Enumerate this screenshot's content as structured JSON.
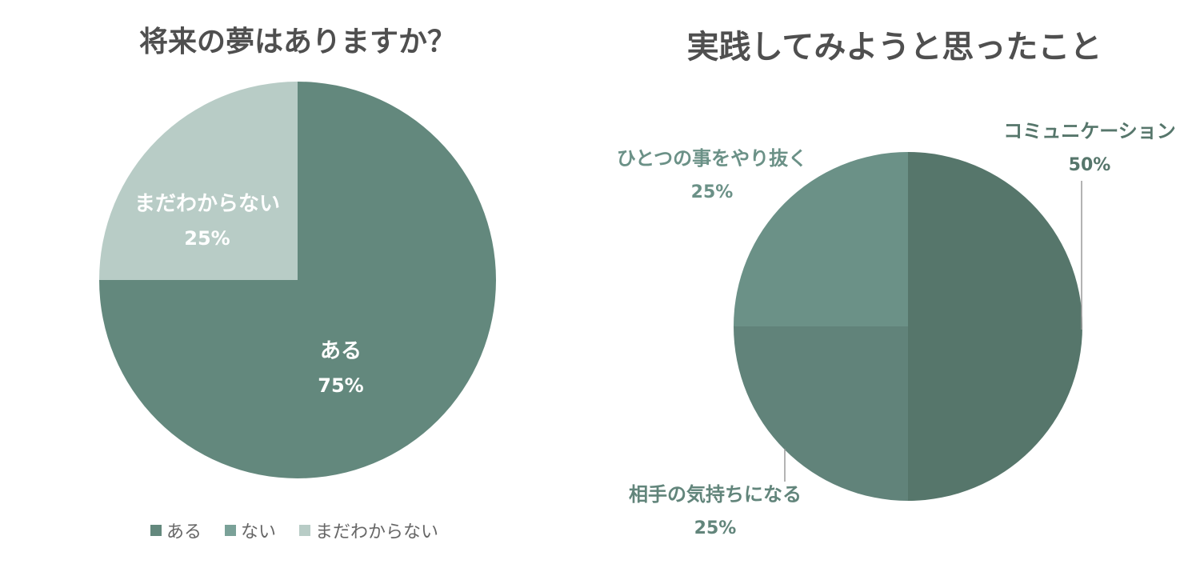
{
  "colors": {
    "title": "#4f4f4f",
    "leader_line": "#9a9a9a",
    "label_on_slice": "#ffffff"
  },
  "chart_data": [
    {
      "type": "pie",
      "title": "将来の夢はありますか？",
      "slices": [
        {
          "label": "ある",
          "value": 75,
          "display": "75%",
          "color": "#63887d",
          "label_color": "#ffffff"
        },
        {
          "label": "ない",
          "value": 0,
          "display": "",
          "color": "#7aa198",
          "label_color": "#ffffff"
        },
        {
          "label": "まだわからない",
          "value": 25,
          "display": "25%",
          "color": "#b8ccc6",
          "label_color": "#ffffff"
        }
      ],
      "legend": {
        "position": "bottom",
        "items": [
          "ある",
          "ない",
          "まだわからない"
        ]
      }
    },
    {
      "type": "pie",
      "title": "実践してみようと思ったこと",
      "slices": [
        {
          "label": "コミュニケーション",
          "value": 50,
          "display": "50%",
          "color": "#56766b",
          "label_color": "#56766b"
        },
        {
          "label": "相手の気持ちになる",
          "value": 25,
          "display": "25%",
          "color": "#61837a",
          "label_color": "#62857b"
        },
        {
          "label": "ひとつの事をやり抜く",
          "value": 25,
          "display": "25%",
          "color": "#6b9187",
          "label_color": "#6b9187"
        }
      ],
      "legend": {
        "position": "none",
        "items": []
      }
    }
  ]
}
